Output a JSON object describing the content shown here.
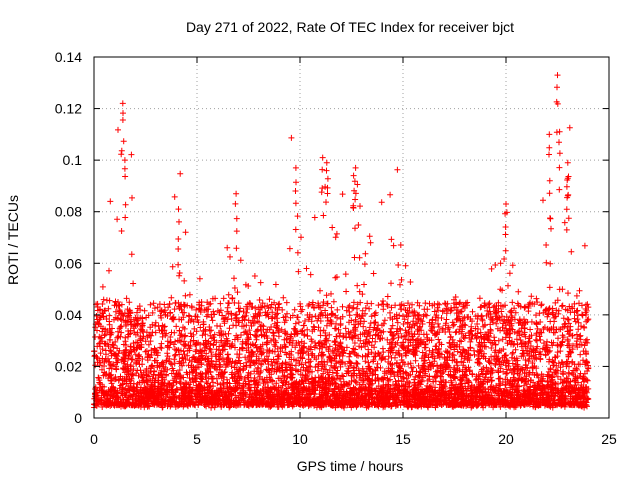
{
  "chart_data": {
    "type": "scatter",
    "title": "Day 271 of 2022, Rate Of TEC Index for receiver bjct",
    "xlabel": "GPS time / hours",
    "ylabel": "ROTI / TECUs",
    "xlim": [
      0,
      25
    ],
    "ylim": [
      0,
      0.14
    ],
    "xticks": [
      0,
      5,
      10,
      15,
      20,
      25
    ],
    "yticks": [
      0,
      0.02,
      0.04,
      0.06,
      0.08,
      0.1,
      0.12,
      0.14
    ],
    "grid": true,
    "marker": "+",
    "color": "#ff0000",
    "data_span_hours": [
      0,
      24
    ],
    "typical_range": [
      0.005,
      0.045
    ],
    "notable_peaks": [
      {
        "x": 1.4,
        "y": 0.122
      },
      {
        "x": 1.5,
        "y": 0.1
      },
      {
        "x": 4.1,
        "y": 0.081
      },
      {
        "x": 6.9,
        "y": 0.087
      },
      {
        "x": 9.8,
        "y": 0.097
      },
      {
        "x": 11.1,
        "y": 0.101
      },
      {
        "x": 11.3,
        "y": 0.099
      },
      {
        "x": 12.7,
        "y": 0.097
      },
      {
        "x": 12.6,
        "y": 0.094
      },
      {
        "x": 20.0,
        "y": 0.083
      },
      {
        "x": 22.1,
        "y": 0.11
      },
      {
        "x": 22.5,
        "y": 0.133
      },
      {
        "x": 22.6,
        "y": 0.111
      },
      {
        "x": 23.0,
        "y": 0.099
      },
      {
        "x": 23.0,
        "y": 0.093
      }
    ],
    "active_windows": [
      {
        "center": 1.4,
        "width": 0.7,
        "amp": 0.07
      },
      {
        "center": 4.1,
        "width": 0.6,
        "amp": 0.05
      },
      {
        "center": 6.5,
        "width": 1.2,
        "amp": 0.045
      },
      {
        "center": 9.8,
        "width": 0.8,
        "amp": 0.055
      },
      {
        "center": 11.2,
        "width": 0.8,
        "amp": 0.065
      },
      {
        "center": 12.8,
        "width": 0.8,
        "amp": 0.06
      },
      {
        "center": 14.5,
        "width": 0.8,
        "amp": 0.04
      },
      {
        "center": 20.0,
        "width": 0.5,
        "amp": 0.04
      },
      {
        "center": 22.6,
        "width": 1.2,
        "amp": 0.07
      }
    ]
  }
}
